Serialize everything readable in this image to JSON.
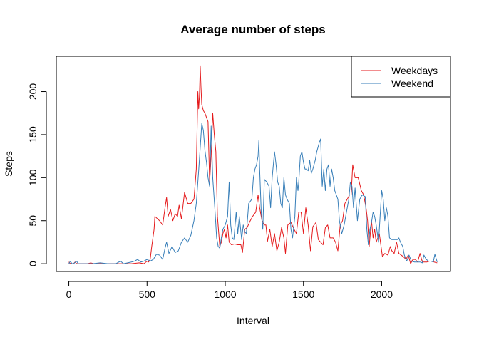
{
  "chart_data": {
    "type": "line",
    "title": "Average number of steps",
    "xlabel": "Interval",
    "ylabel": "Steps",
    "xlim": [
      -80,
      2440
    ],
    "ylim": [
      -9,
      241
    ],
    "xticks": [
      0,
      500,
      1000,
      1500,
      2000
    ],
    "yticks": [
      0,
      50,
      100,
      150,
      200
    ],
    "grid": false,
    "legend_position": "top-right",
    "series": [
      {
        "name": "Weekdays",
        "color": "#e41a1c",
        "points": [
          [
            0,
            2
          ],
          [
            10,
            0
          ],
          [
            20,
            0
          ],
          [
            30,
            0
          ],
          [
            40,
            2
          ],
          [
            50,
            0
          ],
          [
            60,
            0
          ],
          [
            80,
            0
          ],
          [
            100,
            0
          ],
          [
            120,
            0
          ],
          [
            140,
            1
          ],
          [
            160,
            0
          ],
          [
            200,
            0
          ],
          [
            250,
            0
          ],
          [
            300,
            0
          ],
          [
            350,
            0
          ],
          [
            400,
            0
          ],
          [
            450,
            1
          ],
          [
            480,
            0
          ],
          [
            500,
            3
          ],
          [
            510,
            2
          ],
          [
            520,
            5
          ],
          [
            530,
            20
          ],
          [
            545,
            40
          ],
          [
            550,
            55
          ],
          [
            580,
            50
          ],
          [
            600,
            45
          ],
          [
            615,
            65
          ],
          [
            625,
            77
          ],
          [
            635,
            55
          ],
          [
            650,
            63
          ],
          [
            665,
            50
          ],
          [
            680,
            58
          ],
          [
            695,
            55
          ],
          [
            705,
            68
          ],
          [
            720,
            52
          ],
          [
            740,
            83
          ],
          [
            760,
            70
          ],
          [
            780,
            70
          ],
          [
            800,
            75
          ],
          [
            815,
            110
          ],
          [
            825,
            200
          ],
          [
            830,
            180
          ],
          [
            835,
            195
          ],
          [
            840,
            230
          ],
          [
            845,
            205
          ],
          [
            850,
            185
          ],
          [
            860,
            178
          ],
          [
            870,
            175
          ],
          [
            880,
            170
          ],
          [
            890,
            165
          ],
          [
            900,
            95
          ],
          [
            910,
            125
          ],
          [
            920,
            175
          ],
          [
            930,
            150
          ],
          [
            940,
            130
          ],
          [
            950,
            55
          ],
          [
            965,
            20
          ],
          [
            975,
            25
          ],
          [
            985,
            35
          ],
          [
            995,
            40
          ],
          [
            1005,
            30
          ],
          [
            1015,
            45
          ],
          [
            1025,
            25
          ],
          [
            1040,
            22
          ],
          [
            1060,
            23
          ],
          [
            1080,
            22
          ],
          [
            1100,
            22
          ],
          [
            1110,
            13
          ],
          [
            1125,
            40
          ],
          [
            1140,
            42
          ],
          [
            1160,
            50
          ],
          [
            1175,
            55
          ],
          [
            1195,
            60
          ],
          [
            1210,
            80
          ],
          [
            1220,
            65
          ],
          [
            1235,
            50
          ],
          [
            1250,
            45
          ],
          [
            1260,
            45
          ],
          [
            1270,
            26
          ],
          [
            1285,
            40
          ],
          [
            1300,
            20
          ],
          [
            1315,
            35
          ],
          [
            1330,
            15
          ],
          [
            1345,
            25
          ],
          [
            1360,
            42
          ],
          [
            1375,
            30
          ],
          [
            1385,
            12
          ],
          [
            1400,
            45
          ],
          [
            1420,
            48
          ],
          [
            1440,
            40
          ],
          [
            1455,
            35
          ],
          [
            1470,
            60
          ],
          [
            1485,
            60
          ],
          [
            1500,
            35
          ],
          [
            1515,
            65
          ],
          [
            1530,
            45
          ],
          [
            1545,
            15
          ],
          [
            1560,
            43
          ],
          [
            1580,
            48
          ],
          [
            1595,
            28
          ],
          [
            1610,
            25
          ],
          [
            1625,
            22
          ],
          [
            1640,
            42
          ],
          [
            1655,
            45
          ],
          [
            1670,
            30
          ],
          [
            1690,
            30
          ],
          [
            1705,
            25
          ],
          [
            1720,
            15
          ],
          [
            1735,
            45
          ],
          [
            1750,
            50
          ],
          [
            1765,
            70
          ],
          [
            1780,
            75
          ],
          [
            1795,
            80
          ],
          [
            1805,
            80
          ],
          [
            1815,
            115
          ],
          [
            1830,
            100
          ],
          [
            1850,
            100
          ],
          [
            1870,
            85
          ],
          [
            1885,
            80
          ],
          [
            1900,
            65
          ],
          [
            1910,
            50
          ],
          [
            1920,
            20
          ],
          [
            1935,
            50
          ],
          [
            1945,
            30
          ],
          [
            1955,
            40
          ],
          [
            1965,
            25
          ],
          [
            1985,
            35
          ],
          [
            2005,
            8
          ],
          [
            2020,
            12
          ],
          [
            2040,
            10
          ],
          [
            2055,
            20
          ],
          [
            2065,
            15
          ],
          [
            2080,
            12
          ],
          [
            2095,
            25
          ],
          [
            2110,
            12
          ],
          [
            2125,
            10
          ],
          [
            2140,
            8
          ],
          [
            2155,
            5
          ],
          [
            2170,
            10
          ],
          [
            2185,
            0
          ],
          [
            2200,
            5
          ],
          [
            2215,
            5
          ],
          [
            2230,
            2
          ],
          [
            2245,
            12
          ],
          [
            2260,
            2
          ],
          [
            2275,
            2
          ],
          [
            2290,
            2
          ],
          [
            2305,
            3
          ],
          [
            2320,
            3
          ],
          [
            2335,
            2
          ],
          [
            2355,
            1
          ]
        ]
      },
      {
        "name": "Weekend",
        "color": "#377eb8",
        "points": [
          [
            0,
            0
          ],
          [
            10,
            3
          ],
          [
            20,
            0
          ],
          [
            30,
            0
          ],
          [
            50,
            3
          ],
          [
            60,
            0
          ],
          [
            80,
            0
          ],
          [
            100,
            0
          ],
          [
            150,
            0
          ],
          [
            200,
            1
          ],
          [
            250,
            0
          ],
          [
            300,
            0
          ],
          [
            330,
            3
          ],
          [
            350,
            0
          ],
          [
            400,
            2
          ],
          [
            420,
            3
          ],
          [
            440,
            5
          ],
          [
            460,
            2
          ],
          [
            480,
            3
          ],
          [
            500,
            5
          ],
          [
            520,
            3
          ],
          [
            540,
            5
          ],
          [
            560,
            11
          ],
          [
            580,
            10
          ],
          [
            600,
            5
          ],
          [
            615,
            18
          ],
          [
            625,
            25
          ],
          [
            640,
            12
          ],
          [
            660,
            20
          ],
          [
            680,
            13
          ],
          [
            700,
            15
          ],
          [
            720,
            25
          ],
          [
            740,
            30
          ],
          [
            760,
            25
          ],
          [
            780,
            33
          ],
          [
            800,
            50
          ],
          [
            815,
            70
          ],
          [
            830,
            108
          ],
          [
            840,
            135
          ],
          [
            850,
            163
          ],
          [
            860,
            155
          ],
          [
            870,
            132
          ],
          [
            880,
            118
          ],
          [
            890,
            100
          ],
          [
            900,
            90
          ],
          [
            910,
            160
          ],
          [
            920,
            100
          ],
          [
            935,
            60
          ],
          [
            945,
            30
          ],
          [
            955,
            20
          ],
          [
            965,
            18
          ],
          [
            975,
            30
          ],
          [
            985,
            40
          ],
          [
            1000,
            45
          ],
          [
            1015,
            55
          ],
          [
            1025,
            95
          ],
          [
            1035,
            45
          ],
          [
            1045,
            30
          ],
          [
            1055,
            28
          ],
          [
            1070,
            60
          ],
          [
            1080,
            35
          ],
          [
            1090,
            55
          ],
          [
            1105,
            28
          ],
          [
            1115,
            45
          ],
          [
            1125,
            37
          ],
          [
            1135,
            35
          ],
          [
            1150,
            70
          ],
          [
            1170,
            75
          ],
          [
            1180,
            100
          ],
          [
            1190,
            110
          ],
          [
            1200,
            115
          ],
          [
            1210,
            125
          ],
          [
            1215,
            143
          ],
          [
            1220,
            110
          ],
          [
            1230,
            60
          ],
          [
            1240,
            40
          ],
          [
            1250,
            98
          ],
          [
            1265,
            95
          ],
          [
            1280,
            90
          ],
          [
            1290,
            65
          ],
          [
            1300,
            100
          ],
          [
            1315,
            130
          ],
          [
            1325,
            115
          ],
          [
            1335,
            95
          ],
          [
            1345,
            90
          ],
          [
            1355,
            70
          ],
          [
            1365,
            65
          ],
          [
            1375,
            100
          ],
          [
            1385,
            80
          ],
          [
            1395,
            75
          ],
          [
            1410,
            70
          ],
          [
            1420,
            40
          ],
          [
            1430,
            30
          ],
          [
            1445,
            55
          ],
          [
            1455,
            100
          ],
          [
            1465,
            85
          ],
          [
            1470,
            95
          ],
          [
            1480,
            125
          ],
          [
            1490,
            130
          ],
          [
            1500,
            118
          ],
          [
            1510,
            110
          ],
          [
            1520,
            110
          ],
          [
            1530,
            108
          ],
          [
            1540,
            120
          ],
          [
            1550,
            105
          ],
          [
            1560,
            110
          ],
          [
            1575,
            120
          ],
          [
            1585,
            130
          ],
          [
            1600,
            140
          ],
          [
            1610,
            145
          ],
          [
            1620,
            90
          ],
          [
            1630,
            110
          ],
          [
            1640,
            85
          ],
          [
            1650,
            110
          ],
          [
            1660,
            115
          ],
          [
            1670,
            90
          ],
          [
            1680,
            110
          ],
          [
            1690,
            100
          ],
          [
            1700,
            85
          ],
          [
            1710,
            80
          ],
          [
            1720,
            75
          ],
          [
            1730,
            50
          ],
          [
            1745,
            35
          ],
          [
            1760,
            45
          ],
          [
            1775,
            60
          ],
          [
            1790,
            75
          ],
          [
            1800,
            95
          ],
          [
            1810,
            90
          ],
          [
            1820,
            65
          ],
          [
            1830,
            88
          ],
          [
            1845,
            50
          ],
          [
            1860,
            75
          ],
          [
            1875,
            80
          ],
          [
            1895,
            78
          ],
          [
            1905,
            40
          ],
          [
            1915,
            22
          ],
          [
            1925,
            40
          ],
          [
            1935,
            48
          ],
          [
            1945,
            60
          ],
          [
            1955,
            55
          ],
          [
            1965,
            45
          ],
          [
            1980,
            25
          ],
          [
            1995,
            70
          ],
          [
            2000,
            85
          ],
          [
            2010,
            75
          ],
          [
            2020,
            50
          ],
          [
            2030,
            65
          ],
          [
            2040,
            55
          ],
          [
            2050,
            30
          ],
          [
            2065,
            28
          ],
          [
            2080,
            28
          ],
          [
            2100,
            28
          ],
          [
            2110,
            30
          ],
          [
            2120,
            25
          ],
          [
            2135,
            20
          ],
          [
            2145,
            10
          ],
          [
            2160,
            3
          ],
          [
            2175,
            10
          ],
          [
            2190,
            3
          ],
          [
            2210,
            2
          ],
          [
            2230,
            2
          ],
          [
            2245,
            2
          ],
          [
            2260,
            1
          ],
          [
            2270,
            10
          ],
          [
            2285,
            5
          ],
          [
            2300,
            3
          ],
          [
            2315,
            3
          ],
          [
            2330,
            2
          ],
          [
            2340,
            11
          ],
          [
            2350,
            5
          ],
          [
            2355,
            2
          ]
        ]
      }
    ]
  }
}
